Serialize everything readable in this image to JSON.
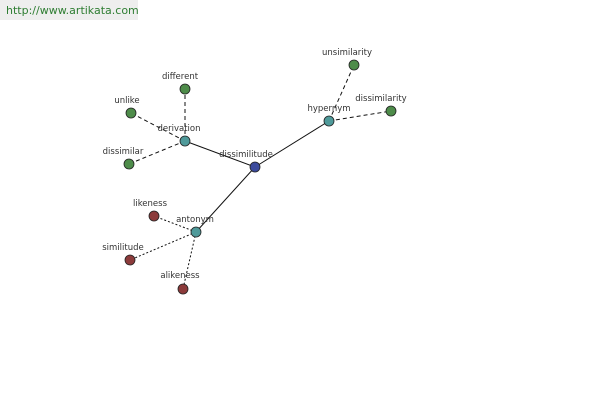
{
  "header": {
    "link": "http://www.artikata.com"
  },
  "nodes": [
    {
      "label": "dissimilitude",
      "color": "#3b4a9c"
    },
    {
      "label": "derivation",
      "color": "#4f9a9a"
    },
    {
      "label": "hypernym",
      "color": "#4f9a9a"
    },
    {
      "label": "antonym",
      "color": "#4f9a9a"
    },
    {
      "label": "different",
      "color": "#4e8c4a"
    },
    {
      "label": "unlike",
      "color": "#4e8c4a"
    },
    {
      "label": "dissimilar",
      "color": "#4e8c4a"
    },
    {
      "label": "unsimilarity",
      "color": "#4e8c4a"
    },
    {
      "label": "dissimilarity",
      "color": "#4e8c4a"
    },
    {
      "label": "likeness",
      "color": "#8c3b3b"
    },
    {
      "label": "similitude",
      "color": "#8c3b3b"
    },
    {
      "label": "alikeness",
      "color": "#8c3b3b"
    }
  ],
  "edges": [
    {
      "from": 0,
      "to": 1,
      "style": "solid"
    },
    {
      "from": 0,
      "to": 2,
      "style": "solid"
    },
    {
      "from": 0,
      "to": 3,
      "style": "solid"
    },
    {
      "from": 1,
      "to": 4,
      "style": "dashed"
    },
    {
      "from": 1,
      "to": 5,
      "style": "dashed"
    },
    {
      "from": 1,
      "to": 6,
      "style": "dashed"
    },
    {
      "from": 2,
      "to": 7,
      "style": "dashed"
    },
    {
      "from": 2,
      "to": 8,
      "style": "dashed"
    },
    {
      "from": 3,
      "to": 9,
      "style": "dotted"
    },
    {
      "from": 3,
      "to": 10,
      "style": "dotted"
    },
    {
      "from": 3,
      "to": 11,
      "style": "dotted"
    }
  ]
}
